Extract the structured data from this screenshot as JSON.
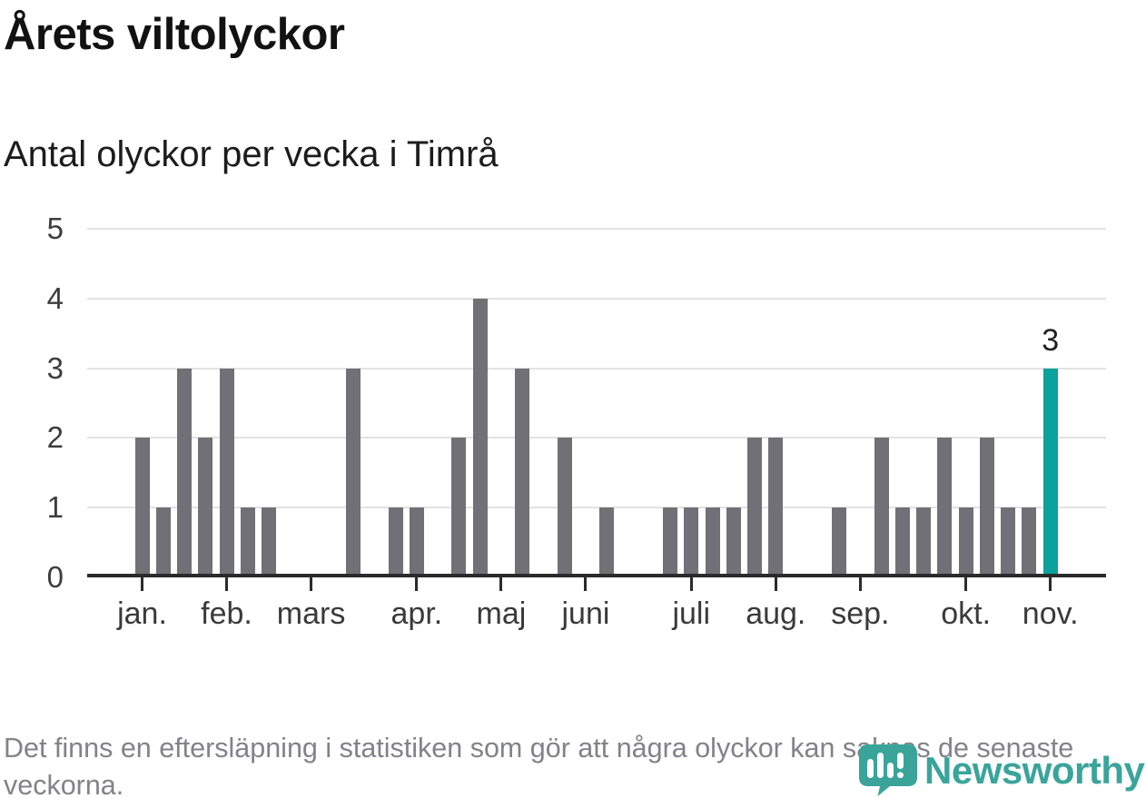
{
  "header": {
    "title": "Årets viltolyckor",
    "subtitle": "Antal olyckor per vecka i Timrå"
  },
  "chart_data": {
    "type": "bar",
    "title": "Årets viltolyckor",
    "subtitle": "Antal olyckor per vecka i Timrå",
    "x_description": "veckor, vecka 1 till vecka 44 (januari–november)",
    "values": [
      2,
      1,
      3,
      2,
      3,
      1,
      1,
      0,
      0,
      0,
      3,
      0,
      1,
      1,
      0,
      2,
      4,
      0,
      3,
      0,
      2,
      0,
      1,
      0,
      0,
      1,
      1,
      1,
      1,
      2,
      2,
      0,
      0,
      1,
      0,
      2,
      1,
      1,
      2,
      1,
      2,
      1,
      1,
      3
    ],
    "yticks": [
      0,
      1,
      2,
      3,
      4,
      5
    ],
    "ylim": [
      0,
      5
    ],
    "grid": "horizontal",
    "legend": "none",
    "bar_color": "#707076",
    "axis_color": "#2b2b2b",
    "gridline_color": "#e2e2e2",
    "highlight": {
      "index": 43,
      "value": 3,
      "label": "3",
      "color": "#0ba29b"
    },
    "month_ticks": [
      {
        "label": "jan.",
        "week": 1
      },
      {
        "label": "feb.",
        "week": 5
      },
      {
        "label": "mars",
        "week": 9
      },
      {
        "label": "apr.",
        "week": 14
      },
      {
        "label": "maj",
        "week": 18
      },
      {
        "label": "juni",
        "week": 22
      },
      {
        "label": "juli",
        "week": 27
      },
      {
        "label": "aug.",
        "week": 31
      },
      {
        "label": "sep.",
        "week": 35
      },
      {
        "label": "okt.",
        "week": 40
      },
      {
        "label": "nov.",
        "week": 44
      }
    ]
  },
  "footer": {
    "note": "Det finns en eftersläpning i statistiken som gör att några olyckor kan saknas de senaste veckorna.",
    "brand": "Newsworthy",
    "brand_color": "#3aa49b"
  }
}
